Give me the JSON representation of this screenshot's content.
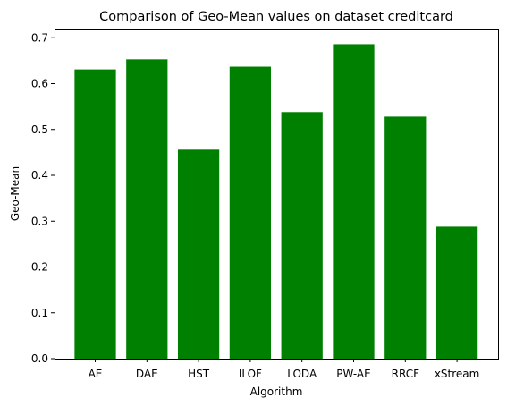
{
  "chart_data": {
    "type": "bar",
    "title": "Comparison of Geo-Mean values on dataset creditcard",
    "xlabel": "Algorithm",
    "ylabel": "Geo-Mean",
    "categories": [
      "AE",
      "DAE",
      "HST",
      "ILOF",
      "LODA",
      "PW-AE",
      "RRCF",
      "xStream"
    ],
    "values": [
      0.631,
      0.653,
      0.456,
      0.637,
      0.538,
      0.686,
      0.528,
      0.288
    ],
    "ylim": [
      0,
      0.72
    ],
    "yticks": [
      0.0,
      0.1,
      0.2,
      0.3,
      0.4,
      0.5,
      0.6,
      0.7
    ],
    "ytick_labels": [
      "0.0",
      "0.1",
      "0.2",
      "0.3",
      "0.4",
      "0.5",
      "0.6",
      "0.7"
    ],
    "bar_color": "#008000",
    "grid": false,
    "legend": "none"
  }
}
